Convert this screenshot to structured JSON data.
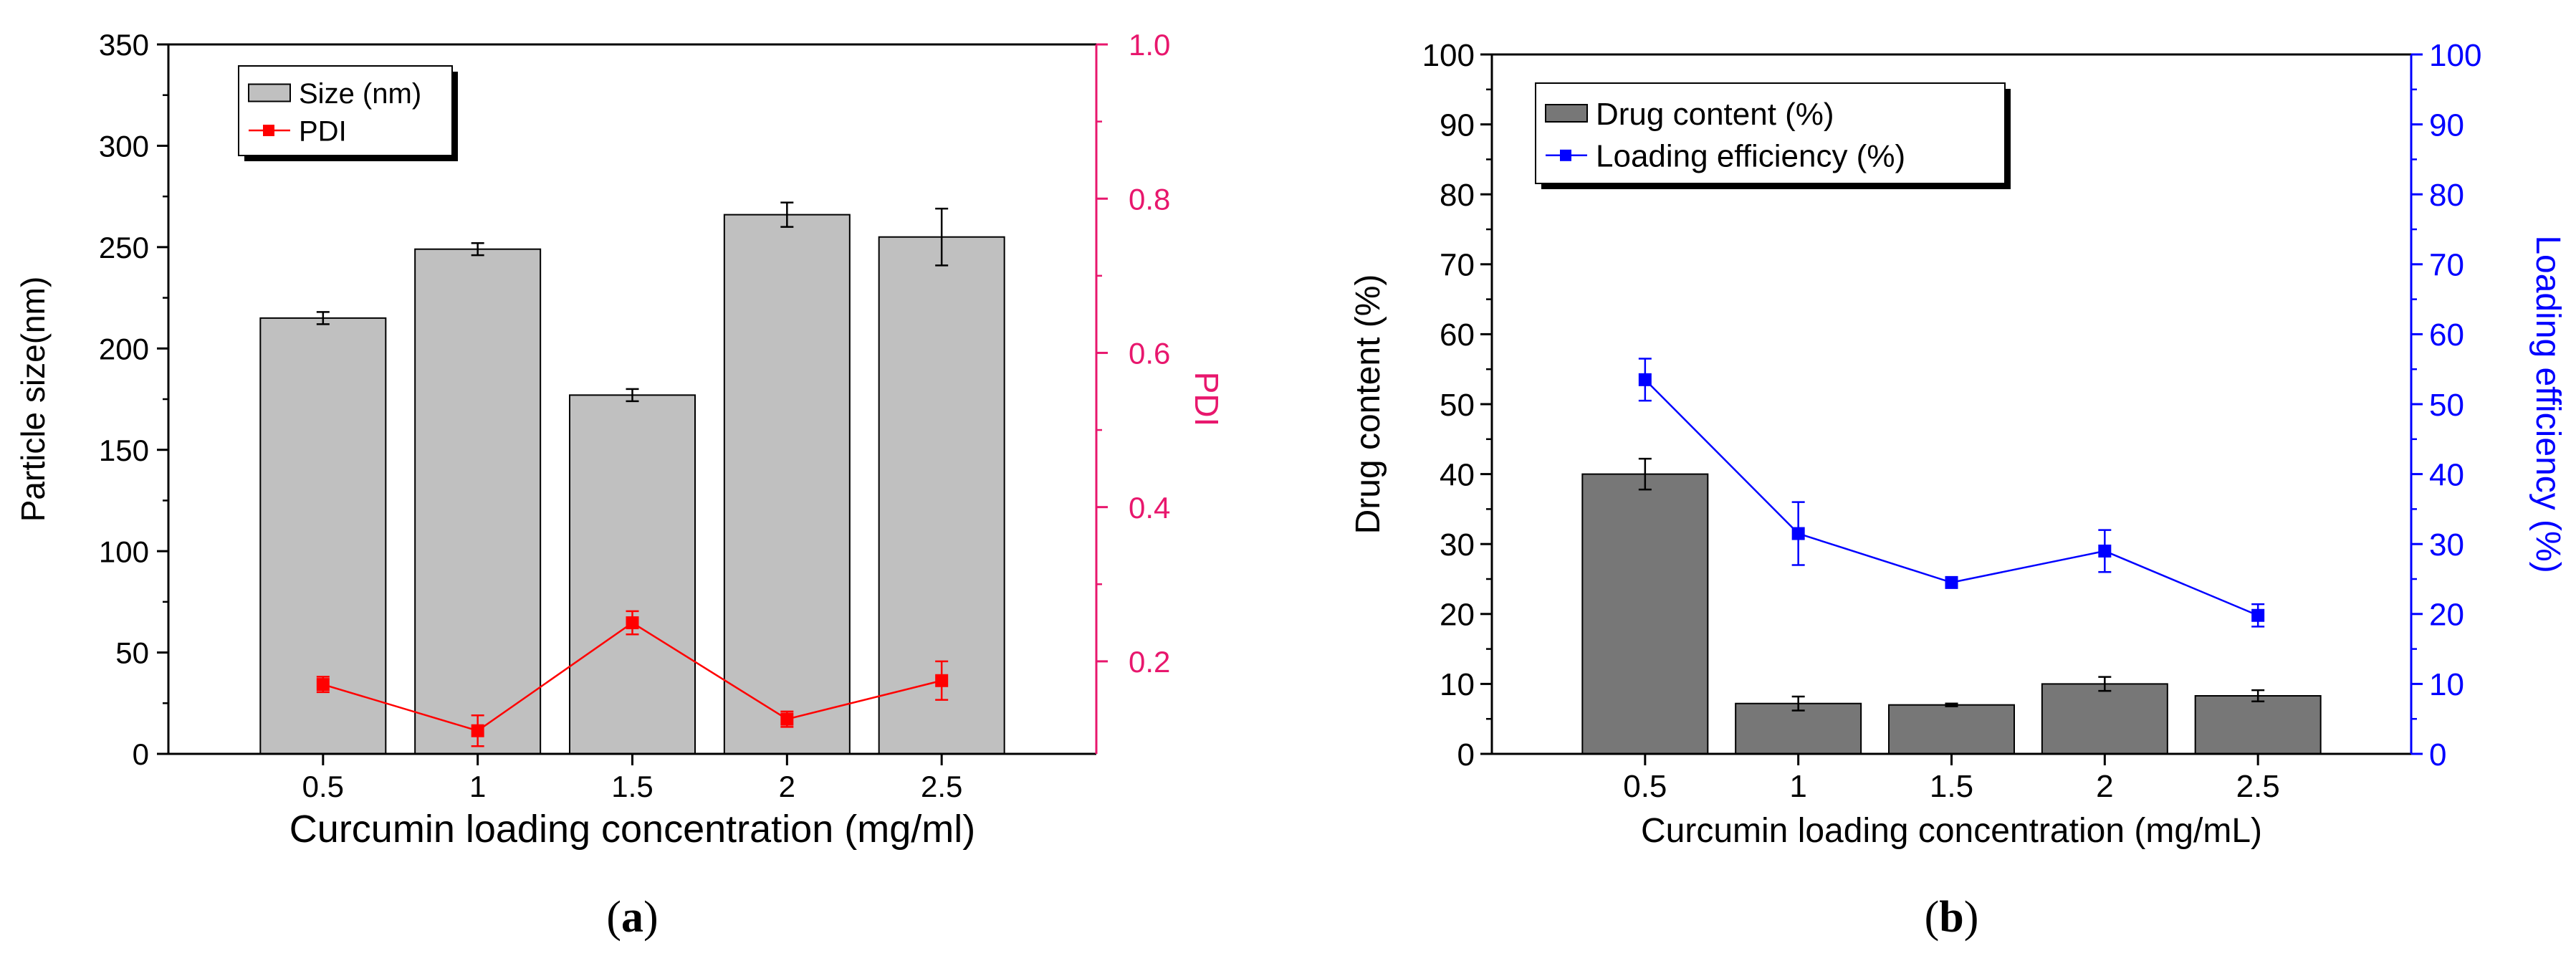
{
  "chart_data": [
    {
      "panel": "a",
      "type": "bar+line",
      "categories": [
        "0.5",
        "1",
        "1.5",
        "2",
        "2.5"
      ],
      "xlabel": "Curcumin loading concentration (mg/ml)",
      "ylabel": "Particle size(nm)",
      "y2label": "PDI",
      "ylim": [
        0,
        350
      ],
      "yticks": [
        "0",
        "50",
        "100",
        "150",
        "200",
        "250",
        "300",
        "350"
      ],
      "y2lim": [
        0.08,
        1.0
      ],
      "y2ticks": [
        "0.2",
        "0.4",
        "0.6",
        "0.8",
        "1.0"
      ],
      "series": [
        {
          "name": "Size (nm)",
          "kind": "bar",
          "axis": "left",
          "color": "#c0c0c0",
          "values": [
            215,
            249,
            177,
            266,
            255
          ],
          "errors": [
            3,
            3,
            3,
            6,
            14
          ]
        },
        {
          "name": "PDI",
          "kind": "line",
          "axis": "right",
          "color": "#ff0000",
          "values": [
            0.17,
            0.11,
            0.25,
            0.125,
            0.175
          ],
          "errors": [
            0.01,
            0.02,
            0.015,
            0.01,
            0.025
          ]
        }
      ],
      "legend": "top-left",
      "caption": "(a)"
    },
    {
      "panel": "b",
      "type": "bar+line",
      "categories": [
        "0.5",
        "1",
        "1.5",
        "2",
        "2.5"
      ],
      "xlabel": "Curcumin loading concentration (mg/mL)",
      "ylabel": "Drug content (%)",
      "y2label": "Loading efficiency (%)",
      "ylim": [
        0,
        100
      ],
      "yticks": [
        "0",
        "10",
        "20",
        "30",
        "40",
        "50",
        "60",
        "70",
        "80",
        "90",
        "100"
      ],
      "y2lim": [
        0,
        100
      ],
      "y2ticks": [
        "0",
        "10",
        "20",
        "30",
        "40",
        "50",
        "60",
        "70",
        "80",
        "90",
        "100"
      ],
      "series": [
        {
          "name": "Drug content (%)",
          "kind": "bar",
          "axis": "left",
          "color": "#777777",
          "values": [
            40,
            7.2,
            7,
            10,
            8.3
          ],
          "errors": [
            2.2,
            1,
            0.2,
            1,
            0.8
          ]
        },
        {
          "name": "Loading efficiency (%)",
          "kind": "line",
          "axis": "right",
          "color": "#0000ff",
          "values": [
            53.5,
            31.5,
            24.5,
            29,
            19.8
          ],
          "errors": [
            3,
            4.5,
            0.3,
            3,
            1.6
          ]
        }
      ],
      "legend": "top-left",
      "caption": "(b)"
    }
  ]
}
